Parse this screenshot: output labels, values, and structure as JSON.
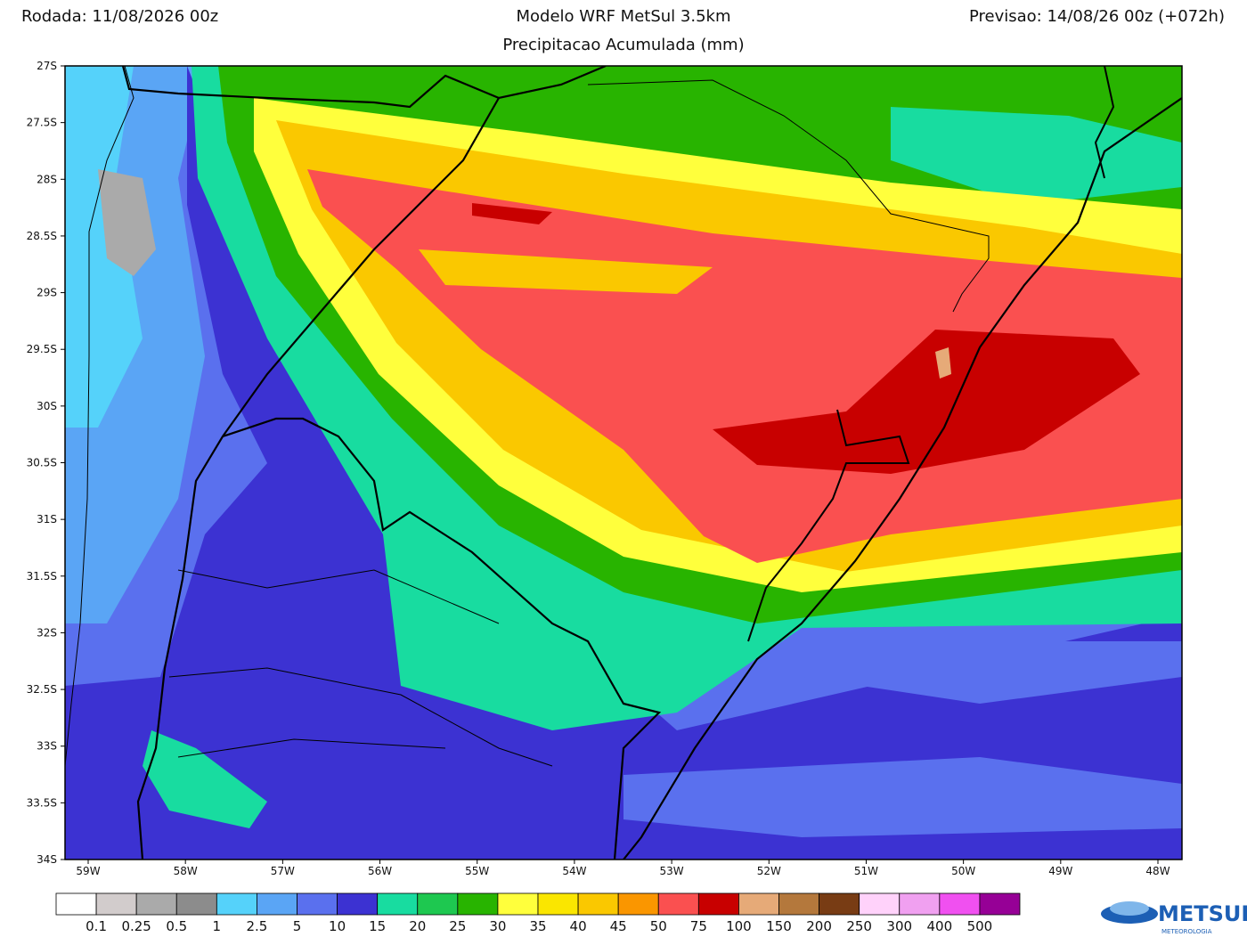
{
  "header": {
    "left": "Rodada: 11/08/2026 00z",
    "center": "Modelo WRF MetSul 3.5km",
    "right": "Previsao: 14/08/26 00z (+072h)",
    "subtitle": "Precipitacao Acumulada (mm)"
  },
  "map": {
    "lat_labels": [
      "27S",
      "27.5S",
      "28S",
      "28.5S",
      "29S",
      "29.5S",
      "30S",
      "30.5S",
      "31S",
      "31.5S",
      "32S",
      "32.5S",
      "33S",
      "33.5S",
      "34S"
    ],
    "lon_labels": [
      "59W",
      "58W",
      "57W",
      "56W",
      "55W",
      "54W",
      "53W",
      "52W",
      "51W",
      "50W",
      "49W",
      "48W"
    ]
  },
  "colorbar": {
    "colors": [
      "#ffffff",
      "#d2cccc",
      "#aaaaaa",
      "#8c8c8c",
      "#55d2fa",
      "#5aa5f5",
      "#5a70ee",
      "#3c32d2",
      "#18dca0",
      "#1ec850",
      "#28b400",
      "#ffff3c",
      "#fae600",
      "#fac800",
      "#fa9600",
      "#fa5050",
      "#c80000",
      "#e6aa78",
      "#b4783c",
      "#783c14",
      "#ffd2fa",
      "#f0a0f0",
      "#f050f0",
      "#960096"
    ],
    "labels": [
      "0.1",
      "0.25",
      "0.5",
      "1",
      "2.5",
      "5",
      "10",
      "15",
      "20",
      "25",
      "30",
      "35",
      "40",
      "45",
      "50",
      "75",
      "100",
      "150",
      "200",
      "250",
      "300",
      "400",
      "500"
    ]
  },
  "logo": {
    "text": "METSUL",
    "subtext": "METEOROLOGIA"
  }
}
